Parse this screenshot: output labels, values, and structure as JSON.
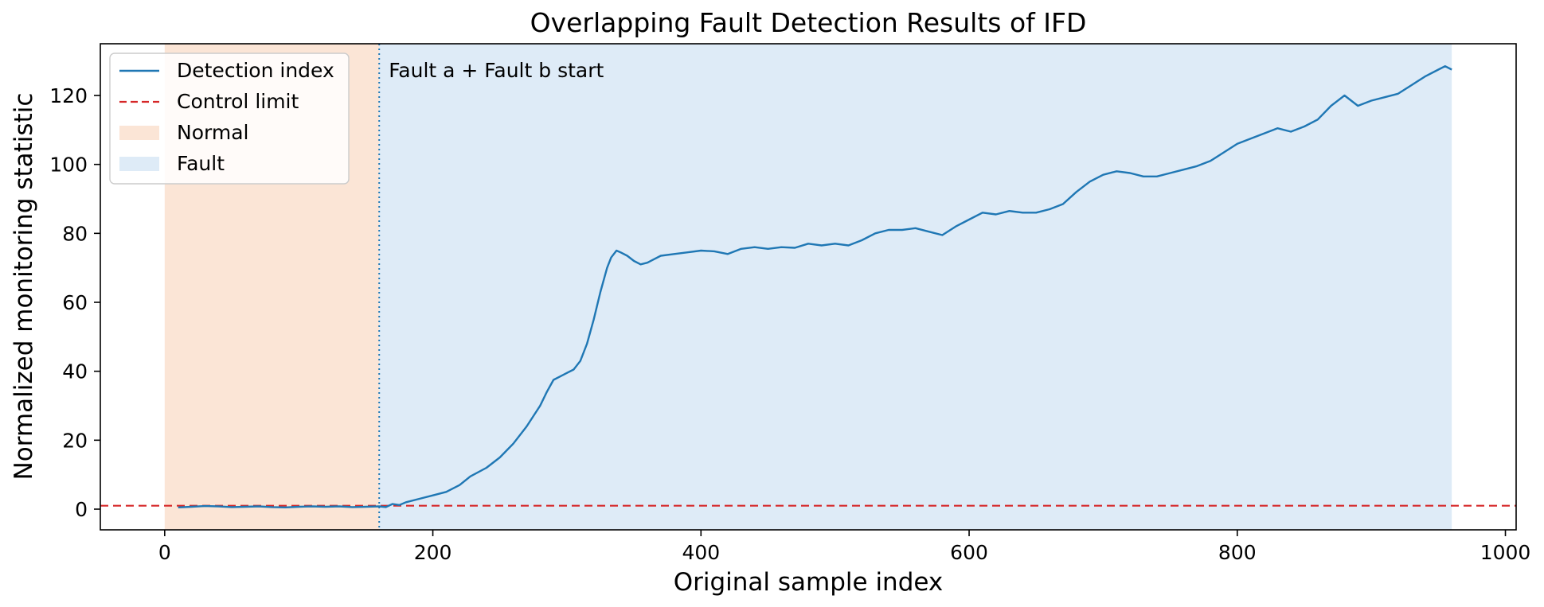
{
  "chart_data": {
    "type": "line",
    "title": "Overlapping Fault Detection Results of IFD",
    "xlabel": "Original sample index",
    "ylabel": "Normalized monitoring statistic",
    "xlim": [
      -48,
      1008
    ],
    "ylim": [
      -6.0,
      135.0
    ],
    "xticks": [
      0,
      200,
      400,
      600,
      800,
      1000
    ],
    "yticks": [
      0,
      20,
      40,
      60,
      80,
      100,
      120
    ],
    "grid": false,
    "legend_position": "upper-left",
    "legend": [
      {
        "label": "Detection index",
        "kind": "line",
        "color": "#1f77b4"
      },
      {
        "label": "Control limit",
        "kind": "dashed",
        "color": "#d62728"
      },
      {
        "label": "Normal",
        "kind": "patch",
        "color": "#fbe5d6"
      },
      {
        "label": "Fault",
        "kind": "patch",
        "color": "#deebf7"
      }
    ],
    "regions": [
      {
        "name": "Normal",
        "x_start": 0,
        "x_end": 160,
        "color": "#fbe5d6"
      },
      {
        "name": "Fault",
        "x_start": 160,
        "x_end": 960,
        "color": "#deebf7"
      }
    ],
    "fault_start": {
      "x": 160,
      "label": "Fault a + Fault b start",
      "color": "#1f77b4"
    },
    "control_limit": {
      "y": 1.0,
      "color": "#d62728"
    },
    "series": [
      {
        "name": "Detection index",
        "color": "#1f77b4",
        "points": [
          [
            10,
            0.5
          ],
          [
            20,
            0.7
          ],
          [
            30,
            0.9
          ],
          [
            40,
            0.8
          ],
          [
            50,
            0.6
          ],
          [
            60,
            0.7
          ],
          [
            70,
            0.8
          ],
          [
            80,
            0.6
          ],
          [
            90,
            0.5
          ],
          [
            100,
            0.7
          ],
          [
            110,
            0.8
          ],
          [
            120,
            0.7
          ],
          [
            130,
            0.8
          ],
          [
            140,
            0.6
          ],
          [
            150,
            0.7
          ],
          [
            160,
            0.8
          ],
          [
            165,
            0.6
          ],
          [
            170,
            1.5
          ],
          [
            175,
            1.2
          ],
          [
            180,
            2.0
          ],
          [
            190,
            3.0
          ],
          [
            200,
            4.0
          ],
          [
            210,
            5.0
          ],
          [
            220,
            7.0
          ],
          [
            228,
            9.5
          ],
          [
            240,
            12.0
          ],
          [
            250,
            15.0
          ],
          [
            260,
            19.0
          ],
          [
            270,
            24.0
          ],
          [
            280,
            30.0
          ],
          [
            285,
            34.0
          ],
          [
            290,
            37.5
          ],
          [
            295,
            38.5
          ],
          [
            300,
            39.5
          ],
          [
            305,
            40.5
          ],
          [
            310,
            43.0
          ],
          [
            315,
            48.0
          ],
          [
            320,
            55.0
          ],
          [
            325,
            63.0
          ],
          [
            330,
            70.0
          ],
          [
            333,
            73.0
          ],
          [
            337,
            75.0
          ],
          [
            340,
            74.5
          ],
          [
            345,
            73.5
          ],
          [
            350,
            72.0
          ],
          [
            355,
            71.0
          ],
          [
            360,
            71.5
          ],
          [
            365,
            72.5
          ],
          [
            370,
            73.5
          ],
          [
            380,
            74.0
          ],
          [
            390,
            74.5
          ],
          [
            400,
            75.0
          ],
          [
            410,
            74.8
          ],
          [
            420,
            74.0
          ],
          [
            430,
            75.5
          ],
          [
            440,
            76.0
          ],
          [
            450,
            75.5
          ],
          [
            460,
            76.0
          ],
          [
            470,
            75.8
          ],
          [
            480,
            77.0
          ],
          [
            490,
            76.5
          ],
          [
            500,
            77.0
          ],
          [
            510,
            76.5
          ],
          [
            520,
            78.0
          ],
          [
            530,
            80.0
          ],
          [
            540,
            81.0
          ],
          [
            550,
            81.0
          ],
          [
            560,
            81.5
          ],
          [
            570,
            80.5
          ],
          [
            580,
            79.5
          ],
          [
            590,
            82.0
          ],
          [
            600,
            84.0
          ],
          [
            610,
            86.0
          ],
          [
            620,
            85.5
          ],
          [
            630,
            86.5
          ],
          [
            640,
            86.0
          ],
          [
            650,
            86.0
          ],
          [
            660,
            87.0
          ],
          [
            670,
            88.5
          ],
          [
            680,
            92.0
          ],
          [
            690,
            95.0
          ],
          [
            700,
            97.0
          ],
          [
            710,
            98.0
          ],
          [
            720,
            97.5
          ],
          [
            730,
            96.5
          ],
          [
            740,
            96.5
          ],
          [
            750,
            97.5
          ],
          [
            760,
            98.5
          ],
          [
            770,
            99.5
          ],
          [
            780,
            101.0
          ],
          [
            790,
            103.5
          ],
          [
            800,
            106.0
          ],
          [
            810,
            107.5
          ],
          [
            820,
            109.0
          ],
          [
            830,
            110.5
          ],
          [
            840,
            109.5
          ],
          [
            850,
            111.0
          ],
          [
            860,
            113.0
          ],
          [
            870,
            117.0
          ],
          [
            880,
            120.0
          ],
          [
            885,
            118.5
          ],
          [
            890,
            117.0
          ],
          [
            900,
            118.5
          ],
          [
            910,
            119.5
          ],
          [
            920,
            120.5
          ],
          [
            930,
            123.0
          ],
          [
            940,
            125.5
          ],
          [
            950,
            127.5
          ],
          [
            955,
            128.5
          ],
          [
            960,
            127.5
          ]
        ]
      }
    ]
  }
}
